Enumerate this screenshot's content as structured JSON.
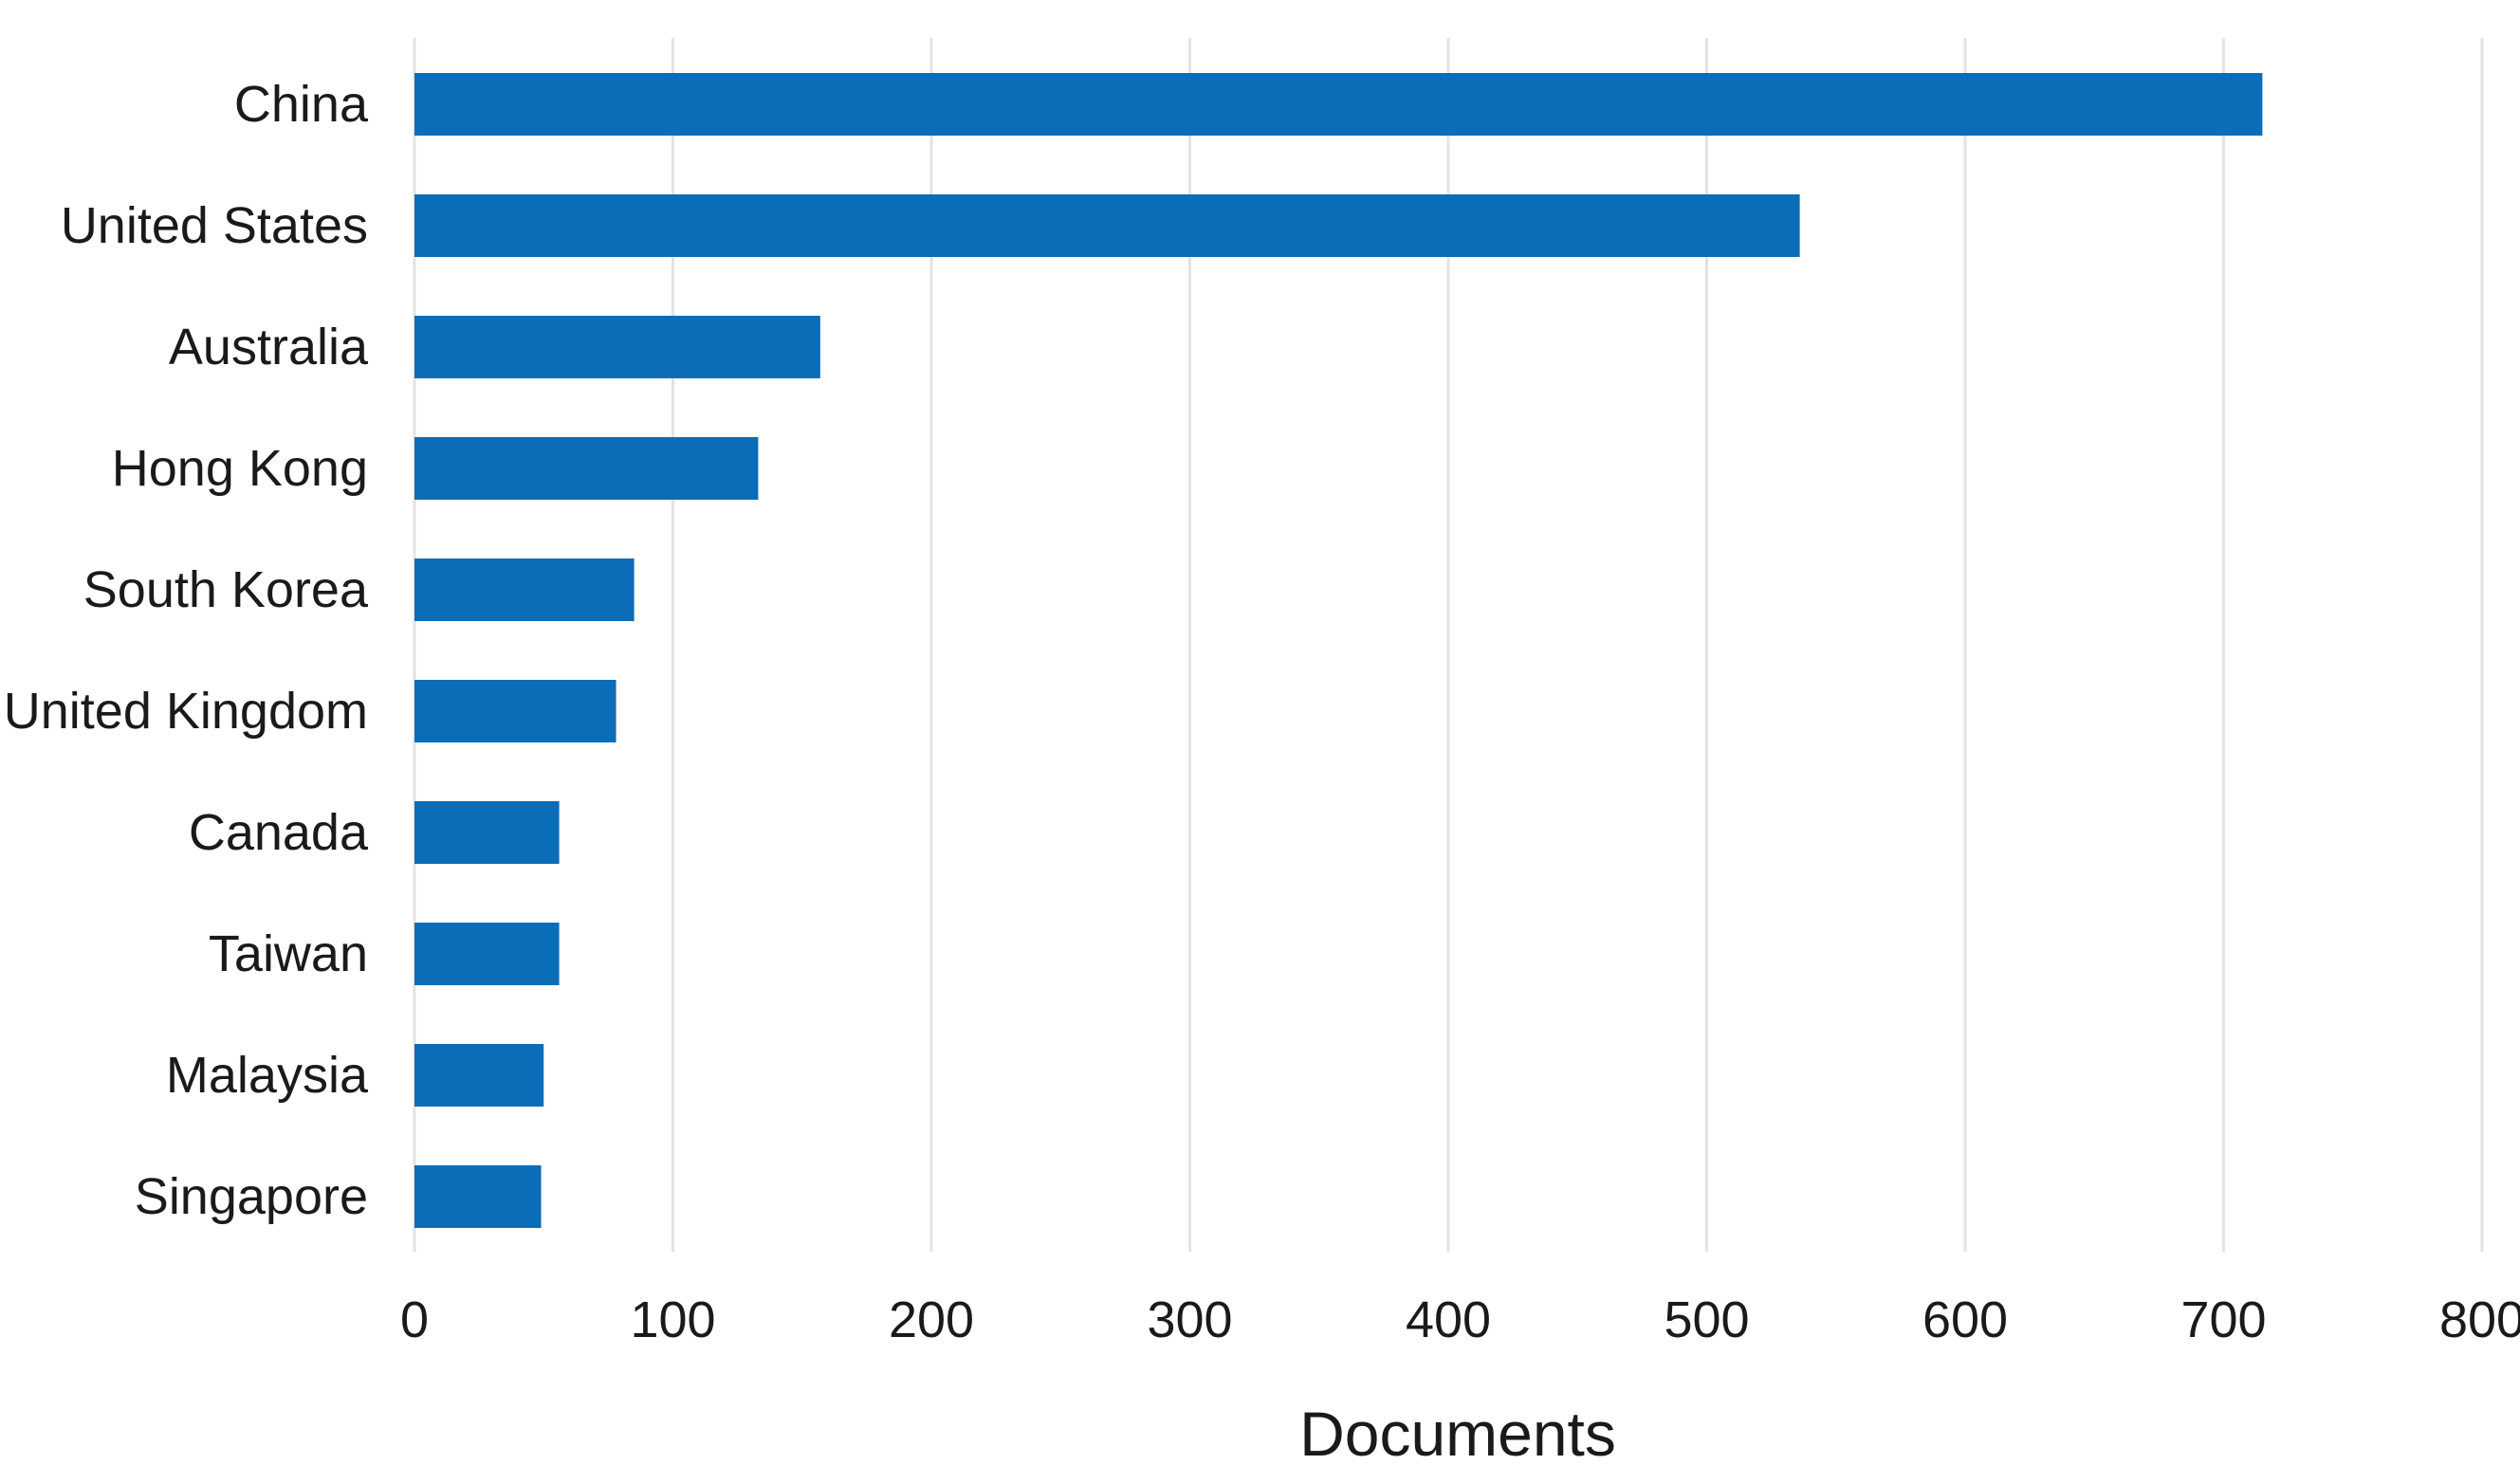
{
  "chart_data": {
    "type": "bar",
    "orientation": "horizontal",
    "categories": [
      "China",
      "United States",
      "Australia",
      "Hong Kong",
      "South Korea",
      "United Kingdom",
      "Canada",
      "Taiwan",
      "Malaysia",
      "Singapore"
    ],
    "values": [
      715,
      536,
      157,
      133,
      85,
      78,
      56,
      56,
      50,
      49
    ],
    "xlabel": "Documents",
    "ylabel": "",
    "title": "",
    "xlim": [
      0,
      800
    ],
    "xticks": [
      0,
      100,
      200,
      300,
      400,
      500,
      600,
      700,
      800
    ],
    "grid": "vertical",
    "legend": "none",
    "bar_color": "#0b6cb7",
    "grid_color": "#e3e3e3"
  }
}
